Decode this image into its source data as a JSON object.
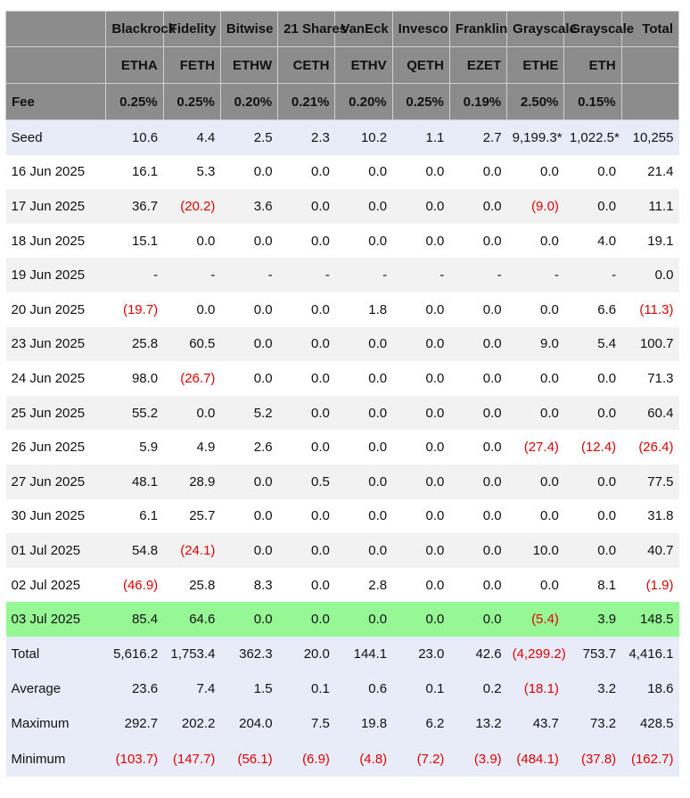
{
  "funds": [
    {
      "issuer": "Blackrock",
      "ticker": "ETHA",
      "fee": "0.25%"
    },
    {
      "issuer": "Fidelity",
      "ticker": "FETH",
      "fee": "0.25%"
    },
    {
      "issuer": "Bitwise",
      "ticker": "ETHW",
      "fee": "0.20%"
    },
    {
      "issuer": "21 Shares",
      "ticker": "CETH",
      "fee": "0.21%"
    },
    {
      "issuer": "VanEck",
      "ticker": "ETHV",
      "fee": "0.20%"
    },
    {
      "issuer": "Invesco",
      "ticker": "QETH",
      "fee": "0.25%"
    },
    {
      "issuer": "Franklin",
      "ticker": "EZET",
      "fee": "0.19%"
    },
    {
      "issuer": "Grayscale",
      "ticker": "ETHE",
      "fee": "2.50%"
    },
    {
      "issuer": "Grayscale",
      "ticker": "ETH",
      "fee": "0.15%"
    }
  ],
  "header": {
    "total_label": "Total",
    "fee_label": "Fee"
  },
  "rows": [
    {
      "label": "Seed",
      "values": [
        "10.6",
        "4.4",
        "2.5",
        "2.3",
        "10.2",
        "1.1",
        "2.7",
        "9,199.3*",
        "1,022.5*",
        "10,255"
      ]
    },
    {
      "label": "16 Jun 2025",
      "values": [
        "16.1",
        "5.3",
        "0.0",
        "0.0",
        "0.0",
        "0.0",
        "0.0",
        "0.0",
        "0.0",
        "21.4"
      ]
    },
    {
      "label": "17 Jun 2025",
      "values": [
        "36.7",
        "(20.2)",
        "3.6",
        "0.0",
        "0.0",
        "0.0",
        "0.0",
        "(9.0)",
        "0.0",
        "11.1"
      ]
    },
    {
      "label": "18 Jun 2025",
      "values": [
        "15.1",
        "0.0",
        "0.0",
        "0.0",
        "0.0",
        "0.0",
        "0.0",
        "0.0",
        "4.0",
        "19.1"
      ]
    },
    {
      "label": "19 Jun 2025",
      "values": [
        "-",
        "-",
        "-",
        "-",
        "-",
        "-",
        "-",
        "-",
        "-",
        "0.0"
      ]
    },
    {
      "label": "20 Jun 2025",
      "values": [
        "(19.7)",
        "0.0",
        "0.0",
        "0.0",
        "1.8",
        "0.0",
        "0.0",
        "0.0",
        "6.6",
        "(11.3)"
      ]
    },
    {
      "label": "23 Jun 2025",
      "values": [
        "25.8",
        "60.5",
        "0.0",
        "0.0",
        "0.0",
        "0.0",
        "0.0",
        "9.0",
        "5.4",
        "100.7"
      ]
    },
    {
      "label": "24 Jun 2025",
      "values": [
        "98.0",
        "(26.7)",
        "0.0",
        "0.0",
        "0.0",
        "0.0",
        "0.0",
        "0.0",
        "0.0",
        "71.3"
      ]
    },
    {
      "label": "25 Jun 2025",
      "values": [
        "55.2",
        "0.0",
        "5.2",
        "0.0",
        "0.0",
        "0.0",
        "0.0",
        "0.0",
        "0.0",
        "60.4"
      ]
    },
    {
      "label": "26 Jun 2025",
      "values": [
        "5.9",
        "4.9",
        "2.6",
        "0.0",
        "0.0",
        "0.0",
        "0.0",
        "(27.4)",
        "(12.4)",
        "(26.4)"
      ]
    },
    {
      "label": "27 Jun 2025",
      "values": [
        "48.1",
        "28.9",
        "0.0",
        "0.5",
        "0.0",
        "0.0",
        "0.0",
        "0.0",
        "0.0",
        "77.5"
      ]
    },
    {
      "label": "30 Jun 2025",
      "values": [
        "6.1",
        "25.7",
        "0.0",
        "0.0",
        "0.0",
        "0.0",
        "0.0",
        "0.0",
        "0.0",
        "31.8"
      ]
    },
    {
      "label": "01 Jul 2025",
      "values": [
        "54.8",
        "(24.1)",
        "0.0",
        "0.0",
        "0.0",
        "0.0",
        "0.0",
        "10.0",
        "0.0",
        "40.7"
      ]
    },
    {
      "label": "02 Jul 2025",
      "values": [
        "(46.9)",
        "25.8",
        "8.3",
        "0.0",
        "2.8",
        "0.0",
        "0.0",
        "0.0",
        "8.1",
        "(1.9)"
      ]
    },
    {
      "label": "03 Jul 2025",
      "values": [
        "85.4",
        "64.6",
        "0.0",
        "0.0",
        "0.0",
        "0.0",
        "0.0",
        "(5.4)",
        "3.9",
        "148.5"
      ]
    }
  ],
  "summary": [
    {
      "label": "Total",
      "values": [
        "5,616.2",
        "1,753.4",
        "362.3",
        "20.0",
        "144.1",
        "23.0",
        "42.6",
        "(4,299.2)",
        "753.7",
        "4,416.1"
      ]
    },
    {
      "label": "Average",
      "values": [
        "23.6",
        "7.4",
        "1.5",
        "0.1",
        "0.6",
        "0.1",
        "0.2",
        "(18.1)",
        "3.2",
        "18.6"
      ]
    },
    {
      "label": "Maximum",
      "values": [
        "292.7",
        "202.2",
        "204.0",
        "7.5",
        "19.8",
        "6.2",
        "13.2",
        "43.7",
        "73.2",
        "428.5"
      ]
    },
    {
      "label": "Minimum",
      "values": [
        "(103.7)",
        "(147.7)",
        "(56.1)",
        "(6.9)",
        "(4.8)",
        "(7.2)",
        "(3.9)",
        "(484.1)",
        "(37.8)",
        "(162.7)"
      ]
    }
  ],
  "colors": {
    "header_bg": "#8c8c8c",
    "seed_and_summary_bg": "#e8ecf9",
    "alt_row_bg": "#f2f2f2",
    "latest_row_bg": "#95f895",
    "negative_text": "#e00000"
  }
}
